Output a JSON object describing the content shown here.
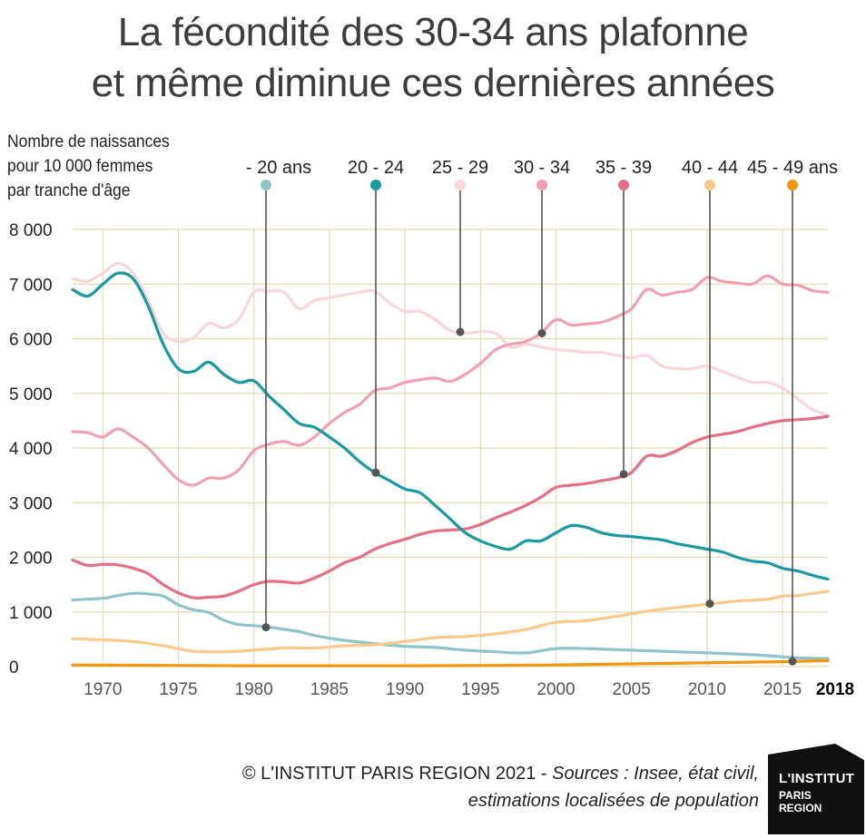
{
  "title_line1": "La fécondité des 30-34 ans plafonne",
  "title_line2": "et même diminue ces dernières années",
  "ylabel_lines": [
    "Nombre de naissances",
    "pour 10 000 femmes",
    "par tranche d'âge"
  ],
  "source_line1_prefix": "© L'INSTITUT PARIS REGION 2021 - ",
  "source_line1_italic": "Sources : Insee, état civil,",
  "source_line2": "estimations localisées de population",
  "logo": {
    "line1": "L'INSTITUT",
    "line2": "PARIS",
    "line3": "REGION"
  },
  "chart_data": {
    "type": "line",
    "xlim": [
      1968,
      2018
    ],
    "ylim": [
      0,
      8000
    ],
    "yticks": [
      0,
      1000,
      2000,
      3000,
      4000,
      5000,
      6000,
      7000,
      8000
    ],
    "ytick_labels": [
      "0",
      "1 000",
      "2 000",
      "3 000",
      "4 000",
      "5 000",
      "6 000",
      "7 000",
      "8 000"
    ],
    "xticks": [
      1970,
      1975,
      1980,
      1985,
      1990,
      1995,
      2000,
      2005,
      2010,
      2015,
      2018
    ],
    "xtick_labels": [
      "1970",
      "1975",
      "1980",
      "1985",
      "1990",
      "1995",
      "2000",
      "2005",
      "2010",
      "2015",
      "2018"
    ],
    "grid": true,
    "legend_placement": "top",
    "series": [
      {
        "name": "- 20 ans",
        "color": "#8fc3ca",
        "marker_year": 1981,
        "x": [
          1968,
          1970,
          1971,
          1972,
          1973,
          1974,
          1975,
          1976,
          1977,
          1978,
          1979,
          1980,
          1981,
          1982,
          1983,
          1984,
          1985,
          1986,
          1988,
          1990,
          1992,
          1994,
          1996,
          1998,
          2000,
          2002,
          2004,
          2006,
          2008,
          2010,
          2012,
          2014,
          2016,
          2018
        ],
        "y": [
          1220,
          1250,
          1300,
          1340,
          1330,
          1290,
          1130,
          1040,
          990,
          850,
          770,
          750,
          720,
          680,
          640,
          570,
          520,
          480,
          420,
          370,
          350,
          300,
          270,
          250,
          330,
          330,
          310,
          290,
          270,
          250,
          230,
          200,
          160,
          150
        ]
      },
      {
        "name": "20 - 24",
        "color": "#1a9aa0",
        "marker_year": 1988,
        "x": [
          1968,
          1969,
          1970,
          1971,
          1972,
          1973,
          1974,
          1975,
          1976,
          1977,
          1978,
          1979,
          1980,
          1981,
          1982,
          1983,
          1984,
          1985,
          1986,
          1987,
          1988,
          1989,
          1990,
          1991,
          1992,
          1993,
          1994,
          1995,
          1996,
          1997,
          1998,
          1999,
          2000,
          2001,
          2002,
          2003,
          2004,
          2005,
          2006,
          2007,
          2008,
          2009,
          2010,
          2011,
          2012,
          2013,
          2014,
          2015,
          2016,
          2017,
          2018
        ],
        "y": [
          6900,
          6780,
          7000,
          7200,
          7100,
          6600,
          5900,
          5450,
          5400,
          5570,
          5350,
          5200,
          5230,
          4950,
          4700,
          4450,
          4380,
          4200,
          4000,
          3750,
          3550,
          3400,
          3250,
          3180,
          2950,
          2700,
          2450,
          2300,
          2200,
          2150,
          2300,
          2300,
          2450,
          2580,
          2550,
          2450,
          2400,
          2380,
          2350,
          2320,
          2250,
          2200,
          2150,
          2100,
          2000,
          1930,
          1900,
          1800,
          1750,
          1670,
          1600
        ]
      },
      {
        "name": "25 - 29",
        "color": "#f9d6dc",
        "marker_year": 1993.5,
        "x": [
          1968,
          1969,
          1970,
          1971,
          1972,
          1973,
          1974,
          1975,
          1976,
          1977,
          1978,
          1979,
          1980,
          1981,
          1982,
          1983,
          1984,
          1985,
          1986,
          1987,
          1988,
          1989,
          1990,
          1991,
          1992,
          1993,
          1994,
          1995,
          1996,
          1997,
          1998,
          1999,
          2000,
          2001,
          2002,
          2003,
          2004,
          2005,
          2006,
          2007,
          2008,
          2009,
          2010,
          2011,
          2012,
          2013,
          2014,
          2015,
          2016,
          2017,
          2018
        ],
        "y": [
          7100,
          7050,
          7200,
          7380,
          7200,
          6700,
          6100,
          5950,
          6020,
          6280,
          6200,
          6350,
          6850,
          6870,
          6850,
          6550,
          6700,
          6750,
          6800,
          6850,
          6870,
          6650,
          6500,
          6500,
          6350,
          6150,
          6100,
          6130,
          6100,
          5850,
          5900,
          5850,
          5800,
          5780,
          5750,
          5750,
          5700,
          5650,
          5700,
          5500,
          5450,
          5450,
          5500,
          5400,
          5300,
          5200,
          5200,
          5100,
          4900,
          4700,
          4600
        ]
      },
      {
        "name": "30 - 34",
        "color": "#f0a0b0",
        "marker_year": 1999,
        "x": [
          1968,
          1969,
          1970,
          1971,
          1972,
          1973,
          1974,
          1975,
          1976,
          1977,
          1978,
          1979,
          1980,
          1981,
          1982,
          1983,
          1984,
          1985,
          1986,
          1987,
          1988,
          1989,
          1990,
          1991,
          1992,
          1993,
          1994,
          1995,
          1996,
          1997,
          1998,
          1999,
          2000,
          2001,
          2002,
          2003,
          2004,
          2005,
          2006,
          2007,
          2008,
          2009,
          2010,
          2011,
          2012,
          2013,
          2014,
          2015,
          2016,
          2017,
          2018
        ],
        "y": [
          4300,
          4280,
          4200,
          4350,
          4200,
          4000,
          3700,
          3420,
          3320,
          3450,
          3450,
          3600,
          3950,
          4070,
          4120,
          4050,
          4200,
          4450,
          4650,
          4800,
          5050,
          5100,
          5200,
          5250,
          5280,
          5220,
          5350,
          5550,
          5800,
          5900,
          5950,
          6100,
          6350,
          6250,
          6270,
          6300,
          6400,
          6550,
          6900,
          6800,
          6850,
          6900,
          7120,
          7050,
          7020,
          7000,
          7150,
          7000,
          6980,
          6880,
          6850
        ]
      },
      {
        "name": "35 - 39",
        "color": "#e56f85",
        "marker_year": 2004.7,
        "x": [
          1968,
          1969,
          1970,
          1971,
          1972,
          1973,
          1974,
          1975,
          1976,
          1977,
          1978,
          1979,
          1980,
          1981,
          1982,
          1983,
          1984,
          1985,
          1986,
          1987,
          1988,
          1989,
          1990,
          1991,
          1992,
          1993,
          1994,
          1995,
          1996,
          1997,
          1998,
          1999,
          2000,
          2001,
          2002,
          2003,
          2004,
          2005,
          2006,
          2007,
          2008,
          2009,
          2010,
          2011,
          2012,
          2013,
          2014,
          2015,
          2016,
          2017,
          2018
        ],
        "y": [
          1950,
          1850,
          1870,
          1860,
          1800,
          1700,
          1500,
          1350,
          1260,
          1270,
          1290,
          1380,
          1500,
          1560,
          1550,
          1530,
          1620,
          1750,
          1900,
          2000,
          2150,
          2250,
          2330,
          2420,
          2480,
          2500,
          2520,
          2600,
          2720,
          2830,
          2950,
          3100,
          3280,
          3320,
          3350,
          3400,
          3450,
          3550,
          3850,
          3850,
          3950,
          4100,
          4200,
          4250,
          4300,
          4380,
          4450,
          4500,
          4520,
          4540,
          4580
        ]
      },
      {
        "name": "40 - 44",
        "color": "#fbc98a",
        "marker_year": 2010.4,
        "x": [
          1968,
          1970,
          1972,
          1974,
          1976,
          1978,
          1980,
          1982,
          1984,
          1986,
          1988,
          1990,
          1992,
          1994,
          1996,
          1998,
          2000,
          2002,
          2004,
          2006,
          2008,
          2010,
          2012,
          2014,
          2015,
          2016,
          2017,
          2018
        ],
        "y": [
          510,
          490,
          460,
          380,
          280,
          270,
          300,
          340,
          340,
          380,
          400,
          460,
          530,
          550,
          600,
          680,
          810,
          840,
          920,
          1010,
          1080,
          1140,
          1200,
          1230,
          1290,
          1300,
          1340,
          1380
        ]
      },
      {
        "name": "45 - 49 ans",
        "color": "#f0960f",
        "marker_year": 2016,
        "x": [
          1968,
          1975,
          1980,
          1985,
          1990,
          1995,
          2000,
          2005,
          2010,
          2015,
          2018
        ],
        "y": [
          30,
          20,
          15,
          15,
          15,
          20,
          30,
          50,
          70,
          90,
          110
        ]
      }
    ]
  }
}
